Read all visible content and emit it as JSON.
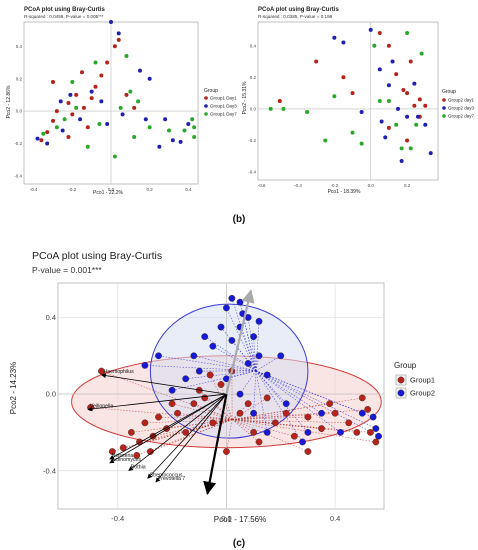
{
  "figure": {
    "label_b": "(b)",
    "label_c": "(c)"
  },
  "chart_data": [
    {
      "type": "scatter",
      "title": "PCoA plot using Bray-Curtis",
      "subtitle": "R-squared : 0.0459, P-value = 0.005***",
      "xlabel": "Pco1 - 22.2%",
      "ylabel": "Pco2 - 12.86%",
      "xlim": [
        -0.45,
        0.45
      ],
      "ylim": [
        -0.45,
        0.55
      ],
      "xticks": [
        -0.4,
        -0.2,
        0.0,
        0.2,
        0.4
      ],
      "xtick_labels": [
        "-0.4",
        "-0.2",
        "0.0",
        "0.2",
        "0.4"
      ],
      "yticks": [
        -0.4,
        -0.2,
        0.0,
        0.2,
        0.4
      ],
      "ytick_labels": [
        "-0.4",
        "-0.2",
        "0.0",
        "0.2",
        "0.4"
      ],
      "legend_title": "Group",
      "legend_position": "right",
      "series": [
        {
          "name": "Group1 Day1",
          "color": "#b5231b",
          "points": [
            [
              -0.36,
              -0.18
            ],
            [
              -0.33,
              -0.13
            ],
            [
              -0.3,
              -0.06
            ],
            [
              -0.28,
              0.0
            ],
            [
              -0.22,
              0.05
            ],
            [
              -0.2,
              -0.02
            ],
            [
              -0.18,
              0.1
            ],
            [
              -0.14,
              0.02
            ],
            [
              -0.1,
              0.08
            ],
            [
              -0.08,
              0.15
            ],
            [
              -0.05,
              0.22
            ],
            [
              -0.02,
              0.3
            ],
            [
              0.02,
              0.4
            ],
            [
              0.04,
              0.44
            ],
            [
              -0.12,
              -0.1
            ],
            [
              -0.22,
              -0.16
            ],
            [
              0.08,
              0.1
            ],
            [
              0.12,
              0.02
            ],
            [
              -0.3,
              0.18
            ],
            [
              -0.15,
              0.24
            ]
          ]
        },
        {
          "name": "Group1 Day3",
          "color": "#1f1fb0",
          "points": [
            [
              -0.38,
              -0.17
            ],
            [
              -0.33,
              -0.2
            ],
            [
              -0.25,
              -0.12
            ],
            [
              -0.21,
              0.1
            ],
            [
              -0.1,
              0.12
            ],
            [
              -0.05,
              0.06
            ],
            [
              0.0,
              0.55
            ],
            [
              0.04,
              0.48
            ],
            [
              0.18,
              -0.05
            ],
            [
              0.25,
              -0.22
            ],
            [
              0.32,
              -0.18
            ],
            [
              0.36,
              -0.19
            ],
            [
              0.15,
              0.25
            ],
            [
              -0.16,
              -0.05
            ],
            [
              -0.26,
              0.06
            ],
            [
              0.06,
              -0.02
            ],
            [
              0.2,
              0.2
            ],
            [
              -0.02,
              -0.08
            ],
            [
              0.28,
              -0.05
            ],
            [
              0.4,
              -0.08
            ]
          ]
        },
        {
          "name": "Group1 Day7",
          "color": "#2aa82a",
          "points": [
            [
              -0.35,
              -0.14
            ],
            [
              -0.28,
              -0.1
            ],
            [
              -0.24,
              -0.05
            ],
            [
              -0.18,
              0.02
            ],
            [
              -0.12,
              -0.22
            ],
            [
              -0.06,
              -0.08
            ],
            [
              0.05,
              0.02
            ],
            [
              0.1,
              0.12
            ],
            [
              0.14,
              0.06
            ],
            [
              0.2,
              -0.1
            ],
            [
              0.3,
              -0.12
            ],
            [
              0.38,
              -0.12
            ],
            [
              0.43,
              -0.1
            ],
            [
              0.43,
              -0.16
            ],
            [
              0.42,
              -0.05
            ],
            [
              -0.2,
              0.18
            ],
            [
              0.02,
              -0.28
            ],
            [
              0.12,
              -0.16
            ],
            [
              -0.08,
              0.3
            ],
            [
              0.08,
              0.34
            ]
          ]
        }
      ]
    },
    {
      "type": "scatter",
      "title": "PCoA plot using Bray-Curtis",
      "subtitle": "R-squared : 0.0385, P-value = 0.198",
      "xlabel": "Pco1 - 18.39%",
      "ylabel": "Pco2 - 15.31%",
      "xlim": [
        -0.62,
        0.37
      ],
      "ylim": [
        -0.45,
        0.55
      ],
      "xticks": [
        -0.6,
        -0.4,
        -0.2,
        0.0,
        0.2
      ],
      "xtick_labels": [
        "-0.6",
        "-0.4",
        "-0.2",
        "0.0",
        "0.2"
      ],
      "yticks": [
        -0.4,
        -0.2,
        0.0,
        0.2,
        0.4
      ],
      "ytick_labels": [
        "-0.4",
        "-0.2",
        "0.0",
        "0.2",
        "0.4"
      ],
      "legend_title": "Group",
      "legend_position": "right",
      "series": [
        {
          "name": "Group2 day1",
          "color": "#b5231b",
          "points": [
            [
              -0.5,
              0.05
            ],
            [
              -0.3,
              0.3
            ],
            [
              -0.15,
              0.2
            ],
            [
              0.05,
              0.48
            ],
            [
              0.1,
              0.4
            ],
            [
              0.2,
              0.1
            ],
            [
              0.24,
              0.02
            ],
            [
              0.27,
              -0.05
            ],
            [
              0.3,
              0.02
            ],
            [
              0.2,
              -0.2
            ],
            [
              0.1,
              -0.12
            ],
            [
              -0.1,
              0.1
            ],
            [
              0.14,
              0.22
            ],
            [
              0.22,
              0.3
            ],
            [
              0.18,
              0.12
            ],
            [
              0.27,
              0.06
            ]
          ]
        },
        {
          "name": "Group2 day3",
          "color": "#1f1fb0",
          "points": [
            [
              -0.2,
              0.45
            ],
            [
              -0.15,
              0.42
            ],
            [
              0.0,
              0.5
            ],
            [
              0.05,
              0.25
            ],
            [
              0.1,
              0.15
            ],
            [
              0.15,
              0.0
            ],
            [
              0.2,
              -0.05
            ],
            [
              0.26,
              -0.05
            ],
            [
              0.3,
              -0.1
            ],
            [
              0.33,
              -0.28
            ],
            [
              0.17,
              -0.33
            ],
            [
              0.08,
              -0.18
            ],
            [
              -0.05,
              -0.02
            ],
            [
              0.12,
              0.3
            ],
            [
              0.24,
              0.16
            ],
            [
              0.06,
              -0.08
            ]
          ]
        },
        {
          "name": "Group2 day7",
          "color": "#2aa82a",
          "points": [
            [
              -0.55,
              0.0
            ],
            [
              -0.48,
              0.0
            ],
            [
              -0.35,
              -0.02
            ],
            [
              -0.25,
              -0.2
            ],
            [
              -0.2,
              0.08
            ],
            [
              -0.1,
              -0.15
            ],
            [
              0.05,
              0.05
            ],
            [
              0.14,
              -0.1
            ],
            [
              0.22,
              -0.25
            ],
            [
              0.25,
              -0.1
            ],
            [
              0.28,
              0.35
            ],
            [
              0.02,
              0.4
            ],
            [
              0.17,
              -0.25
            ],
            [
              -0.05,
              -0.22
            ],
            [
              0.2,
              0.48
            ],
            [
              0.1,
              0.05
            ]
          ]
        }
      ]
    },
    {
      "type": "scatter",
      "title": "PCoA plot using Bray-Curtis",
      "subtitle": "P-value = 0.001***",
      "xlabel": "Pco1 - 17.56%",
      "ylabel": "Pco2 - 14.23%",
      "xlim": [
        -0.62,
        0.58
      ],
      "ylim": [
        -0.6,
        0.58
      ],
      "xticks": [
        -0.4,
        0.0,
        0.4
      ],
      "xtick_labels": [
        "-0.4",
        "0.0",
        "0.4"
      ],
      "yticks": [
        -0.4,
        0.0,
        0.4
      ],
      "ytick_labels": [
        "-0.4",
        "0.0",
        "0.4"
      ],
      "legend_title": "Group",
      "legend_position": "right",
      "grid": true,
      "ellipses": [
        {
          "group": "Group1",
          "cx": 0.0,
          "cy": -0.04,
          "rx": 0.57,
          "ry": 0.24,
          "fill": "#f6cfcf",
          "stroke": "#d33c3c"
        },
        {
          "group": "Group2",
          "cx": 0.01,
          "cy": 0.12,
          "rx": 0.29,
          "ry": 0.35,
          "fill": "#d7def2",
          "stroke": "#3a3ad8"
        }
      ],
      "vectors": [
        {
          "label": "Haemophilus",
          "x": -0.46,
          "y": 0.1,
          "color": "#000000"
        },
        {
          "label": "Veillonella",
          "x": -0.51,
          "y": -0.08,
          "color": "#000000"
        },
        {
          "label": "Neisseria",
          "x": -0.43,
          "y": -0.34,
          "color": "#000000"
        },
        {
          "label": "Actinomyces",
          "x": -0.43,
          "y": -0.36,
          "color": "#000000"
        },
        {
          "label": "Rothia",
          "x": -0.36,
          "y": -0.4,
          "color": "#000000"
        },
        {
          "label": "Streptococcus",
          "x": -0.29,
          "y": -0.44,
          "color": "#000000"
        },
        {
          "label": "Prevotella 7",
          "x": -0.26,
          "y": -0.46,
          "color": "#000000"
        },
        {
          "label": "",
          "x": -0.07,
          "y": -0.52,
          "color": "#000000",
          "bold": true
        },
        {
          "label": "",
          "x": 0.09,
          "y": 0.54,
          "color": "#aaaaaa",
          "bold": true
        }
      ],
      "series": [
        {
          "name": "Group1",
          "color": "#b5231b",
          "points": [
            [
              -0.5,
              -0.07
            ],
            [
              -0.46,
              0.12
            ],
            [
              -0.38,
              -0.28
            ],
            [
              -0.35,
              -0.2
            ],
            [
              -0.32,
              -0.25
            ],
            [
              -0.3,
              -0.15
            ],
            [
              -0.27,
              -0.22
            ],
            [
              -0.25,
              -0.12
            ],
            [
              -0.22,
              -0.18
            ],
            [
              -0.2,
              -0.05
            ],
            [
              -0.18,
              -0.1
            ],
            [
              -0.15,
              -0.2
            ],
            [
              -0.12,
              -0.05
            ],
            [
              -0.1,
              0.02
            ],
            [
              -0.08,
              -0.02
            ],
            [
              -0.06,
              0.1
            ],
            [
              -0.05,
              -0.15
            ],
            [
              -0.02,
              0.05
            ],
            [
              0.02,
              0.12
            ],
            [
              0.05,
              -0.1
            ],
            [
              0.08,
              -0.05
            ],
            [
              0.1,
              -0.2
            ],
            [
              0.12,
              -0.25
            ],
            [
              0.15,
              -0.02
            ],
            [
              0.18,
              -0.15
            ],
            [
              0.22,
              -0.1
            ],
            [
              0.25,
              -0.22
            ],
            [
              0.3,
              -0.12
            ],
            [
              0.35,
              -0.18
            ],
            [
              0.4,
              -0.1
            ],
            [
              0.45,
              -0.15
            ],
            [
              0.5,
              -0.02
            ],
            [
              0.52,
              -0.08
            ],
            [
              0.55,
              -0.25
            ],
            [
              0.53,
              -0.2
            ],
            [
              0.48,
              -0.2
            ],
            [
              0.38,
              -0.05
            ],
            [
              -0.28,
              -0.3
            ],
            [
              -0.33,
              -0.32
            ],
            [
              -0.42,
              -0.3
            ],
            [
              0.0,
              -0.3
            ],
            [
              0.3,
              -0.3
            ]
          ]
        },
        {
          "name": "Group2",
          "color": "#1818d6",
          "points": [
            [
              -0.3,
              0.15
            ],
            [
              -0.25,
              0.2
            ],
            [
              -0.2,
              0.02
            ],
            [
              -0.15,
              0.08
            ],
            [
              -0.1,
              0.12
            ],
            [
              -0.05,
              0.25
            ],
            [
              0.0,
              0.45
            ],
            [
              0.02,
              0.5
            ],
            [
              0.05,
              0.48
            ],
            [
              0.08,
              0.4
            ],
            [
              0.1,
              0.3
            ],
            [
              0.12,
              0.2
            ],
            [
              0.15,
              0.1
            ],
            [
              0.05,
              0.35
            ],
            [
              0.02,
              0.28
            ],
            [
              -0.02,
              0.35
            ],
            [
              0.0,
              0.08
            ],
            [
              0.05,
              0.0
            ],
            [
              0.1,
              -0.1
            ],
            [
              0.15,
              -0.2
            ],
            [
              0.22,
              -0.05
            ],
            [
              0.28,
              -0.25
            ],
            [
              0.3,
              -0.2
            ],
            [
              0.35,
              -0.1
            ],
            [
              0.42,
              -0.2
            ],
            [
              0.5,
              -0.1
            ],
            [
              0.55,
              -0.18
            ],
            [
              0.56,
              -0.22
            ],
            [
              0.54,
              -0.12
            ],
            [
              0.2,
              0.2
            ],
            [
              -0.12,
              0.2
            ],
            [
              0.06,
              0.42
            ],
            [
              -0.08,
              0.3
            ],
            [
              0.08,
              0.16
            ],
            [
              0.12,
              0.38
            ]
          ]
        }
      ]
    }
  ]
}
